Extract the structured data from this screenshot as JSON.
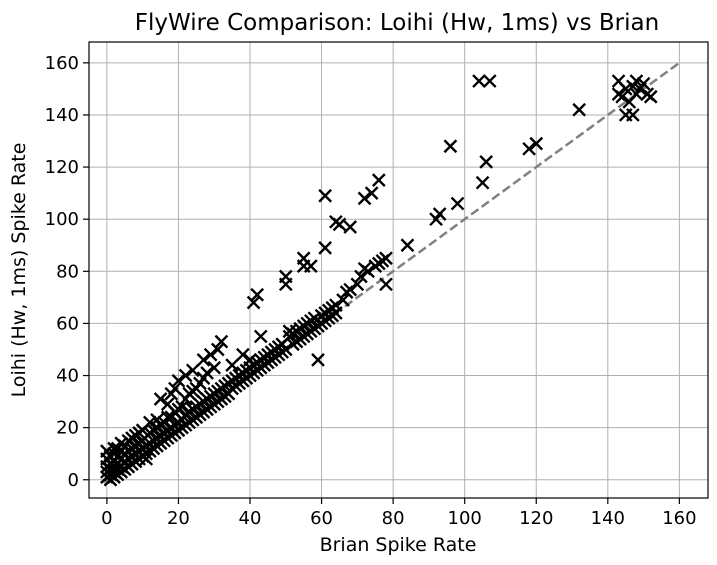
{
  "chart_data": {
    "type": "scatter",
    "title": "FlyWire Comparison: Loihi (Hw, 1ms) vs Brian",
    "xlabel": "Brian Spike Rate",
    "ylabel": "Loihi (Hw, 1ms) Spike Rate",
    "xlim": [
      -5,
      168
    ],
    "ylim": [
      -7,
      168
    ],
    "xticks": [
      0,
      20,
      40,
      60,
      80,
      100,
      120,
      140,
      160
    ],
    "yticks": [
      0,
      20,
      40,
      60,
      80,
      100,
      120,
      140,
      160
    ],
    "grid": true,
    "marker": "x",
    "marker_color": "#000000",
    "reference_line": {
      "x": [
        -1,
        160
      ],
      "y": [
        -1,
        160
      ],
      "style": "dashed",
      "color": "#808080"
    },
    "points": [
      [
        0,
        1
      ],
      [
        0,
        3
      ],
      [
        0,
        5
      ],
      [
        0,
        8
      ],
      [
        0,
        11
      ],
      [
        1,
        0
      ],
      [
        1,
        2
      ],
      [
        1,
        4
      ],
      [
        1,
        6
      ],
      [
        1,
        9
      ],
      [
        2,
        1
      ],
      [
        2,
        3
      ],
      [
        2,
        5
      ],
      [
        2,
        7
      ],
      [
        2,
        10
      ],
      [
        2,
        12
      ],
      [
        3,
        2
      ],
      [
        3,
        4
      ],
      [
        3,
        6
      ],
      [
        3,
        9
      ],
      [
        3,
        12
      ],
      [
        4,
        3
      ],
      [
        4,
        5
      ],
      [
        4,
        8
      ],
      [
        4,
        11
      ],
      [
        4,
        14
      ],
      [
        5,
        4
      ],
      [
        5,
        7
      ],
      [
        5,
        10
      ],
      [
        5,
        13
      ],
      [
        6,
        5
      ],
      [
        6,
        8
      ],
      [
        6,
        11
      ],
      [
        6,
        15
      ],
      [
        7,
        6
      ],
      [
        7,
        9
      ],
      [
        7,
        12
      ],
      [
        7,
        16
      ],
      [
        8,
        7
      ],
      [
        8,
        10
      ],
      [
        8,
        13
      ],
      [
        8,
        17
      ],
      [
        9,
        8
      ],
      [
        9,
        11
      ],
      [
        9,
        14
      ],
      [
        9,
        18
      ],
      [
        10,
        9
      ],
      [
        10,
        12
      ],
      [
        10,
        15
      ],
      [
        10,
        19
      ],
      [
        11,
        10
      ],
      [
        11,
        13
      ],
      [
        11,
        8
      ],
      [
        12,
        11
      ],
      [
        12,
        14
      ],
      [
        12,
        18
      ],
      [
        12,
        22
      ],
      [
        13,
        12
      ],
      [
        13,
        15
      ],
      [
        13,
        19
      ],
      [
        14,
        13
      ],
      [
        14,
        16
      ],
      [
        14,
        20
      ],
      [
        14,
        23
      ],
      [
        15,
        14
      ],
      [
        15,
        17
      ],
      [
        15,
        21
      ],
      [
        15,
        31
      ],
      [
        16,
        15
      ],
      [
        16,
        18
      ],
      [
        16,
        22
      ],
      [
        17,
        16
      ],
      [
        17,
        19
      ],
      [
        17,
        24
      ],
      [
        17,
        29
      ],
      [
        18,
        17
      ],
      [
        18,
        20
      ],
      [
        18,
        24
      ],
      [
        18,
        33
      ],
      [
        19,
        18
      ],
      [
        19,
        21
      ],
      [
        19,
        26
      ],
      [
        19,
        35
      ],
      [
        20,
        19
      ],
      [
        20,
        22
      ],
      [
        20,
        27
      ],
      [
        20,
        38
      ],
      [
        21,
        20
      ],
      [
        21,
        23
      ],
      [
        21,
        28
      ],
      [
        22,
        21
      ],
      [
        22,
        25
      ],
      [
        22,
        31
      ],
      [
        22,
        40
      ],
      [
        23,
        22
      ],
      [
        23,
        26
      ],
      [
        23,
        33
      ],
      [
        24,
        23
      ],
      [
        24,
        27
      ],
      [
        24,
        34
      ],
      [
        24,
        42
      ],
      [
        25,
        24
      ],
      [
        25,
        28
      ],
      [
        25,
        35
      ],
      [
        26,
        25
      ],
      [
        26,
        29
      ],
      [
        26,
        37
      ],
      [
        27,
        26
      ],
      [
        27,
        30
      ],
      [
        27,
        39
      ],
      [
        27,
        46
      ],
      [
        28,
        27
      ],
      [
        28,
        31
      ],
      [
        28,
        41
      ],
      [
        29,
        28
      ],
      [
        29,
        32
      ],
      [
        29,
        48
      ],
      [
        30,
        29
      ],
      [
        30,
        33
      ],
      [
        30,
        43
      ],
      [
        31,
        30
      ],
      [
        31,
        34
      ],
      [
        31,
        50
      ],
      [
        32,
        31
      ],
      [
        32,
        35
      ],
      [
        32,
        53
      ],
      [
        33,
        32
      ],
      [
        33,
        36
      ],
      [
        34,
        33
      ],
      [
        34,
        37
      ],
      [
        35,
        35
      ],
      [
        35,
        38
      ],
      [
        35,
        44
      ],
      [
        36,
        36
      ],
      [
        36,
        39
      ],
      [
        37,
        37
      ],
      [
        37,
        40
      ],
      [
        38,
        38
      ],
      [
        38,
        41
      ],
      [
        38,
        48
      ],
      [
        39,
        39
      ],
      [
        39,
        42
      ],
      [
        40,
        40
      ],
      [
        40,
        43
      ],
      [
        40,
        46
      ],
      [
        41,
        41
      ],
      [
        41,
        44
      ],
      [
        41,
        68
      ],
      [
        42,
        42
      ],
      [
        42,
        45
      ],
      [
        42,
        71
      ],
      [
        43,
        43
      ],
      [
        43,
        46
      ],
      [
        43,
        55
      ],
      [
        44,
        44
      ],
      [
        44,
        47
      ],
      [
        45,
        45
      ],
      [
        45,
        48
      ],
      [
        46,
        46
      ],
      [
        46,
        49
      ],
      [
        47,
        47
      ],
      [
        47,
        50
      ],
      [
        48,
        48
      ],
      [
        48,
        51
      ],
      [
        49,
        49
      ],
      [
        49,
        52
      ],
      [
        50,
        50
      ],
      [
        50,
        75
      ],
      [
        50,
        78
      ],
      [
        51,
        55
      ],
      [
        51,
        57
      ],
      [
        52,
        52
      ],
      [
        52,
        56
      ],
      [
        53,
        53
      ],
      [
        53,
        57
      ],
      [
        54,
        54
      ],
      [
        54,
        58
      ],
      [
        55,
        55
      ],
      [
        55,
        59
      ],
      [
        55,
        82
      ],
      [
        55,
        85
      ],
      [
        56,
        56
      ],
      [
        56,
        60
      ],
      [
        57,
        57
      ],
      [
        57,
        61
      ],
      [
        57,
        82
      ],
      [
        58,
        58
      ],
      [
        58,
        62
      ],
      [
        59,
        46
      ],
      [
        59,
        59
      ],
      [
        60,
        60
      ],
      [
        60,
        63
      ],
      [
        61,
        61
      ],
      [
        61,
        64
      ],
      [
        61,
        89
      ],
      [
        61,
        109
      ],
      [
        62,
        62
      ],
      [
        62,
        65
      ],
      [
        63,
        63
      ],
      [
        63,
        66
      ],
      [
        64,
        64
      ],
      [
        64,
        67
      ],
      [
        64,
        99
      ],
      [
        65,
        98
      ],
      [
        66,
        69
      ],
      [
        67,
        72
      ],
      [
        68,
        97
      ],
      [
        68,
        73
      ],
      [
        70,
        75
      ],
      [
        71,
        78
      ],
      [
        72,
        108
      ],
      [
        72,
        81
      ],
      [
        73,
        80
      ],
      [
        74,
        110
      ],
      [
        75,
        82
      ],
      [
        76,
        83
      ],
      [
        76,
        115
      ],
      [
        77,
        84
      ],
      [
        78,
        75
      ],
      [
        78,
        85
      ],
      [
        84,
        90
      ],
      [
        92,
        100
      ],
      [
        93,
        102
      ],
      [
        96,
        128
      ],
      [
        98,
        106
      ],
      [
        104,
        153
      ],
      [
        105,
        114
      ],
      [
        106,
        122
      ],
      [
        107,
        153
      ],
      [
        118,
        127
      ],
      [
        120,
        129
      ],
      [
        132,
        142
      ],
      [
        143,
        153
      ],
      [
        143,
        148
      ],
      [
        144,
        147
      ],
      [
        145,
        140
      ],
      [
        145,
        150
      ],
      [
        146,
        145
      ],
      [
        147,
        140
      ],
      [
        147,
        151
      ],
      [
        148,
        148
      ],
      [
        148,
        153
      ],
      [
        149,
        150
      ],
      [
        150,
        152
      ],
      [
        151,
        148
      ],
      [
        152,
        147
      ]
    ]
  }
}
